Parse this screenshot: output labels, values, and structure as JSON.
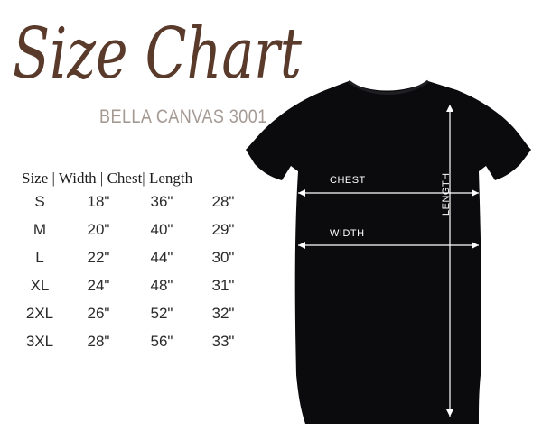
{
  "title": "Size Chart",
  "subtitle": "BELLA CANVAS 3001",
  "table": {
    "header": "Size | Width | Chest| Length",
    "rows": [
      {
        "size": "S",
        "width": "18\"",
        "chest": "36\"",
        "length": "28\""
      },
      {
        "size": "M",
        "width": "20\"",
        "chest": "40\"",
        "length": "29\""
      },
      {
        "size": "L",
        "width": "22\"",
        "chest": "44\"",
        "length": "30\""
      },
      {
        "size": "XL",
        "width": "24\"",
        "chest": "48\"",
        "length": "31\""
      },
      {
        "size": "2XL",
        "width": "26\"",
        "chest": "52\"",
        "length": "32\""
      },
      {
        "size": "3XL",
        "width": "28\"",
        "chest": "56\"",
        "length": "33\""
      }
    ]
  },
  "shirt": {
    "chest_label": "CHEST",
    "width_label": "WIDTH",
    "length_label": "LENGTH"
  },
  "colors": {
    "title": "#5a3a2a",
    "subtitle": "#a59a93",
    "shirt": "#0b0b0d"
  }
}
